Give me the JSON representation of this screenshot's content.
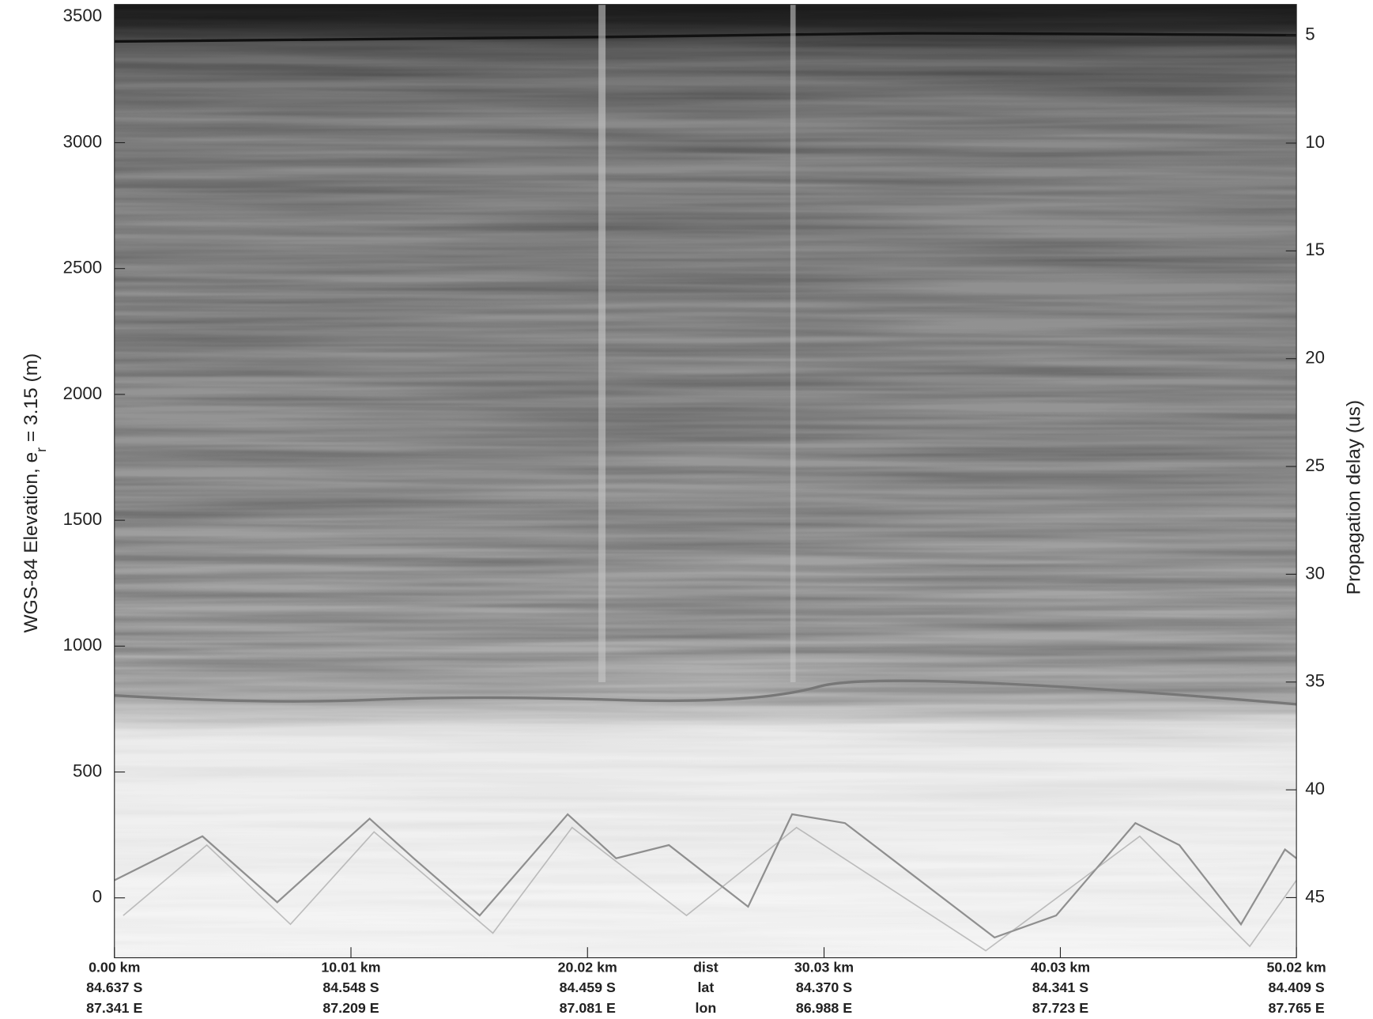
{
  "chart_data": {
    "type": "echogram",
    "ylabel": [
      "WGS-84 Elevation, e",
      "r",
      " = 3.15 (m)"
    ],
    "y2label": "Propagation delay (us)",
    "ylim": [
      -238,
      3549
    ],
    "yticks": [
      0,
      500,
      1000,
      1500,
      2000,
      2500,
      3000,
      3500
    ],
    "y2lim": [
      47.79,
      3.57
    ],
    "y2ticks": [
      5,
      10,
      15,
      20,
      25,
      30,
      35,
      40,
      45
    ],
    "xlim": [
      0,
      50.02
    ],
    "xticks": [
      {
        "value": 0,
        "label": "0.00 km"
      },
      {
        "value": 10.01,
        "label": "10.01 km"
      },
      {
        "value": 20.02,
        "label": "20.02 km"
      },
      {
        "value": 30.03,
        "label": "30.03 km"
      },
      {
        "value": 40.03,
        "label": "40.03 km"
      },
      {
        "value": 50.02,
        "label": "50.02 km"
      }
    ],
    "xtick_lat": [
      "84.637 S",
      "84.548 S",
      "84.459 S",
      "84.370 S",
      "84.341 S",
      "84.409 S"
    ],
    "xtick_lon": [
      "87.341 E",
      "87.209 E",
      "87.081 E",
      "86.988 E",
      "87.723 E",
      "87.765 E"
    ],
    "xrow_labels": [
      "dist",
      "lat",
      "lon"
    ],
    "colormap": [
      "#1e1e1e",
      "#f6f6f6"
    ]
  }
}
